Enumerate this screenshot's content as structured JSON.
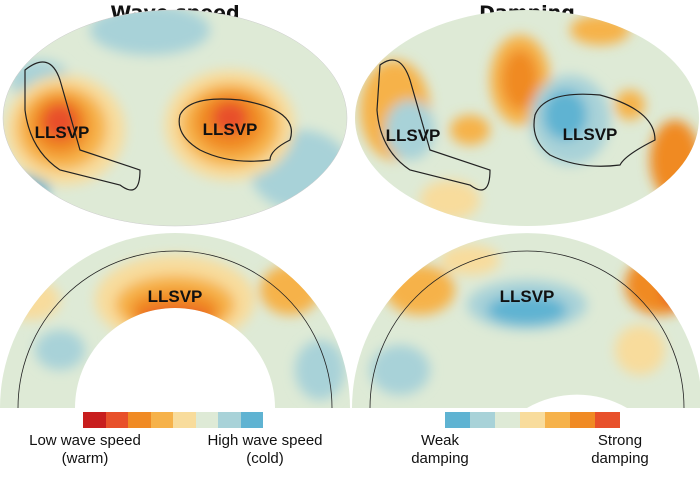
{
  "panels": {
    "left": {
      "title": "Wave speed",
      "map_label": "LLSVP",
      "section_label": "LLSVP"
    },
    "right": {
      "title": "Damping",
      "map_label_1": "LLSVP",
      "map_label_2": "LLSVP",
      "section_label": "LLSVP"
    }
  },
  "legend_left": {
    "colors": [
      "#c81e1e",
      "#e8502a",
      "#f08a24",
      "#f6b24a",
      "#f8dc9c",
      "#deead6",
      "#a8d2d8",
      "#5fb3d2"
    ],
    "low_label": "Low wave speed",
    "low_sub": "(warm)",
    "high_label": "High wave speed",
    "high_sub": "(cold)"
  },
  "legend_right": {
    "colors": [
      "#5fb3d2",
      "#a8d2d8",
      "#deead6",
      "#f8dc9c",
      "#f6b24a",
      "#f08a24",
      "#e8502a"
    ],
    "low_label": "Weak",
    "low_sub": "damping",
    "high_label": "Strong",
    "high_sub": "damping"
  }
}
